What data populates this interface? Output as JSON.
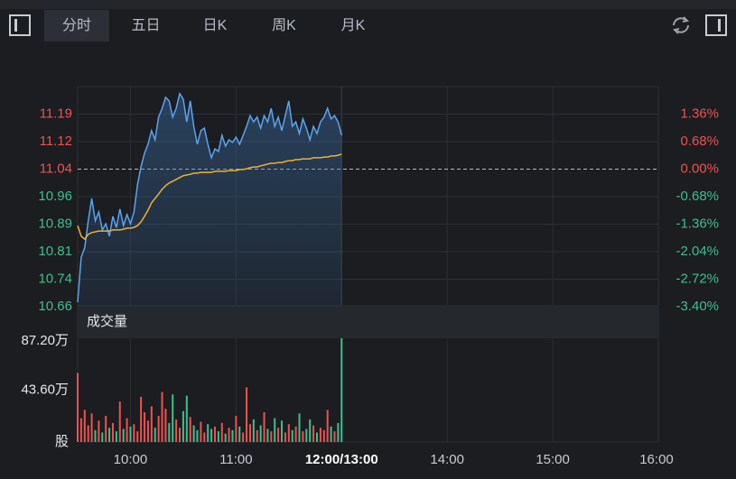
{
  "toolbar": {
    "tabs": [
      "分时",
      "五日",
      "日K",
      "周K",
      "月K"
    ],
    "selected": 0
  },
  "chart_data": [
    {
      "type": "line",
      "xlim": [
        0,
        165
      ],
      "xticks": [
        {
          "value": 15,
          "label": "10:00"
        },
        {
          "value": 45,
          "label": "11:00"
        },
        {
          "value": 75,
          "label": "12:00/13:00"
        },
        {
          "value": 105,
          "label": "14:00"
        },
        {
          "value": 135,
          "label": "15:00"
        },
        {
          "value": 165,
          "label": "16:00"
        }
      ],
      "ylim": [
        10.6646,
        11.2652
      ],
      "yticks": [
        {
          "value": 10.6646,
          "label": "10.66"
        },
        {
          "value": 10.7397,
          "label": "10.74"
        },
        {
          "value": 10.8148,
          "label": "10.81"
        },
        {
          "value": 10.8899,
          "label": "10.89"
        },
        {
          "value": 10.9649,
          "label": "10.96"
        },
        {
          "value": 11.04,
          "label": "11.04"
        },
        {
          "value": 11.1151,
          "label": "11.12"
        },
        {
          "value": 11.1901,
          "label": "11.19"
        }
      ],
      "y2lim": [
        -3.4,
        2.04
      ],
      "y2ticks": [
        {
          "value": -3.4,
          "label": "-3.40%"
        },
        {
          "value": -2.72,
          "label": "-2.72%"
        },
        {
          "value": -2.04,
          "label": "-2.04%"
        },
        {
          "value": -1.36,
          "label": "-1.36%"
        },
        {
          "value": -0.68,
          "label": "-0.68%"
        },
        {
          "value": 0,
          "label": "0.00%"
        },
        {
          "value": 0.68,
          "label": "0.68%"
        },
        {
          "value": 1.36,
          "label": "1.36%"
        }
      ],
      "grid": true,
      "up_color": "#f0514e",
      "down_color": "#3cc08c",
      "series": [
        {
          "color": "#5ba3f0",
          "fill": true,
          "values": [
            10.677,
            10.8,
            10.825,
            10.899,
            10.96,
            10.899,
            10.923,
            10.874,
            10.891,
            10.857,
            10.911,
            10.881,
            10.931,
            10.886,
            10.916,
            10.891,
            10.923,
            10.997,
            11.046,
            11.083,
            11.108,
            11.145,
            11.12,
            11.182,
            11.206,
            11.236,
            11.226,
            11.182,
            11.206,
            11.246,
            11.231,
            11.169,
            11.226,
            11.157,
            11.108,
            11.145,
            11.152,
            11.108,
            11.071,
            11.095,
            11.088,
            11.132,
            11.103,
            11.12,
            11.113,
            11.127,
            11.108,
            11.132,
            11.157,
            11.186,
            11.169,
            11.182,
            11.152,
            11.186,
            11.169,
            11.206,
            11.157,
            11.182,
            11.145,
            11.186,
            11.226,
            11.157,
            11.169,
            11.137,
            11.177,
            11.152,
            11.12,
            11.157,
            11.137,
            11.169,
            11.182,
            11.206,
            11.177,
            11.186,
            11.169,
            11.132
          ]
        },
        {
          "color": "#f0b030",
          "fill": false,
          "values": [
            10.886,
            10.857,
            10.849,
            10.862,
            10.867,
            10.869,
            10.871,
            10.871,
            10.871,
            10.871,
            10.874,
            10.874,
            10.874,
            10.876,
            10.879,
            10.879,
            10.881,
            10.886,
            10.896,
            10.911,
            10.928,
            10.948,
            10.96,
            10.972,
            10.985,
            10.995,
            11.002,
            11.007,
            11.012,
            11.017,
            11.022,
            11.024,
            11.026,
            11.029,
            11.029,
            11.031,
            11.031,
            11.031,
            11.031,
            11.034,
            11.034,
            11.034,
            11.034,
            11.036,
            11.036,
            11.036,
            11.039,
            11.039,
            11.041,
            11.044,
            11.046,
            11.046,
            11.049,
            11.051,
            11.054,
            11.056,
            11.056,
            11.058,
            11.058,
            11.061,
            11.063,
            11.063,
            11.066,
            11.066,
            11.068,
            11.068,
            11.068,
            11.071,
            11.071,
            11.071,
            11.073,
            11.073,
            11.076,
            11.076,
            11.078,
            11.081
          ]
        }
      ]
    },
    {
      "type": "bar",
      "title": "成交量",
      "ylim": [
        0,
        87.2
      ],
      "yticks": [
        {
          "value": 0,
          "label": "股"
        },
        {
          "value": 43.6,
          "label": "43.60万"
        },
        {
          "value": 87.2,
          "label": "87.20万"
        }
      ],
      "values": [
        58,
        20,
        27,
        14,
        24,
        10,
        18,
        8,
        22,
        12,
        16,
        9,
        34,
        11,
        20,
        13,
        15,
        9,
        38,
        25,
        18,
        30,
        12,
        22,
        42,
        28,
        16,
        40,
        19,
        12,
        26,
        39,
        21,
        14,
        10,
        17,
        8,
        15,
        11,
        13,
        9,
        16,
        7,
        12,
        10,
        22,
        13,
        8,
        46,
        15,
        19,
        10,
        14,
        25,
        11,
        9,
        20,
        12,
        18,
        8,
        15,
        10,
        13,
        24,
        9,
        11,
        19,
        14,
        8,
        12,
        10,
        27,
        13,
        9,
        16,
        87.2
      ]
    }
  ]
}
